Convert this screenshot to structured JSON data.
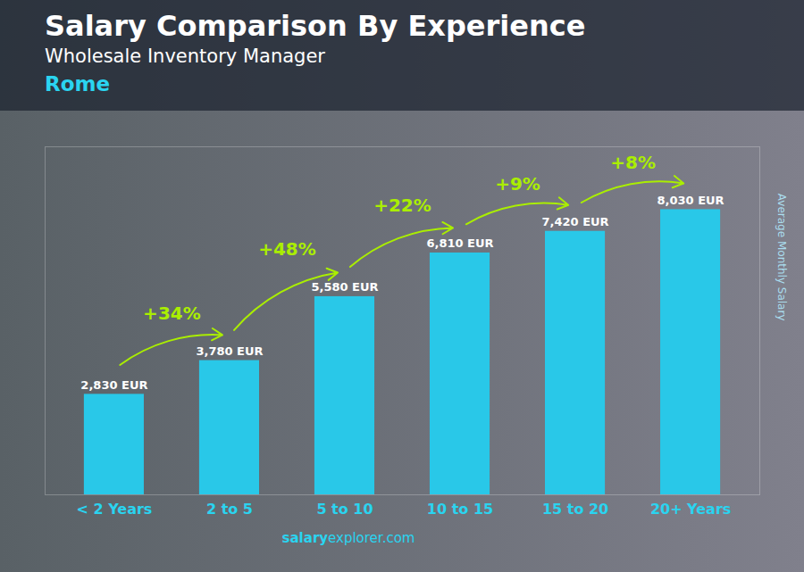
{
  "chart_data": {
    "type": "bar",
    "title": "Salary Comparison By Experience",
    "subtitle": "Wholesale Inventory Manager",
    "ylabel": "Average Monthly Salary",
    "annotations": [
      "Rome",
      "salary",
      "explorer.com"
    ],
    "categories": [
      "< 2 Years",
      "2 to 5",
      "5 to 10",
      "10 to 15",
      "15 to 20",
      "20+ Years"
    ],
    "values": [
      2830,
      3780,
      5580,
      6810,
      7420,
      8030
    ],
    "value_labels": [
      "2,830 EUR",
      "3,780 EUR",
      "5,580 EUR",
      "6,810 EUR",
      "7,420 EUR",
      "8,030 EUR"
    ],
    "change_labels": [
      "+34%",
      "+48%",
      "+22%",
      "+9%",
      "+8%"
    ],
    "color": "#29c8e8",
    "ylim": [
      0,
      9800
    ],
    "yticks": [],
    "grid": false,
    "data_labels": true,
    "tick_labels": "x"
  }
}
